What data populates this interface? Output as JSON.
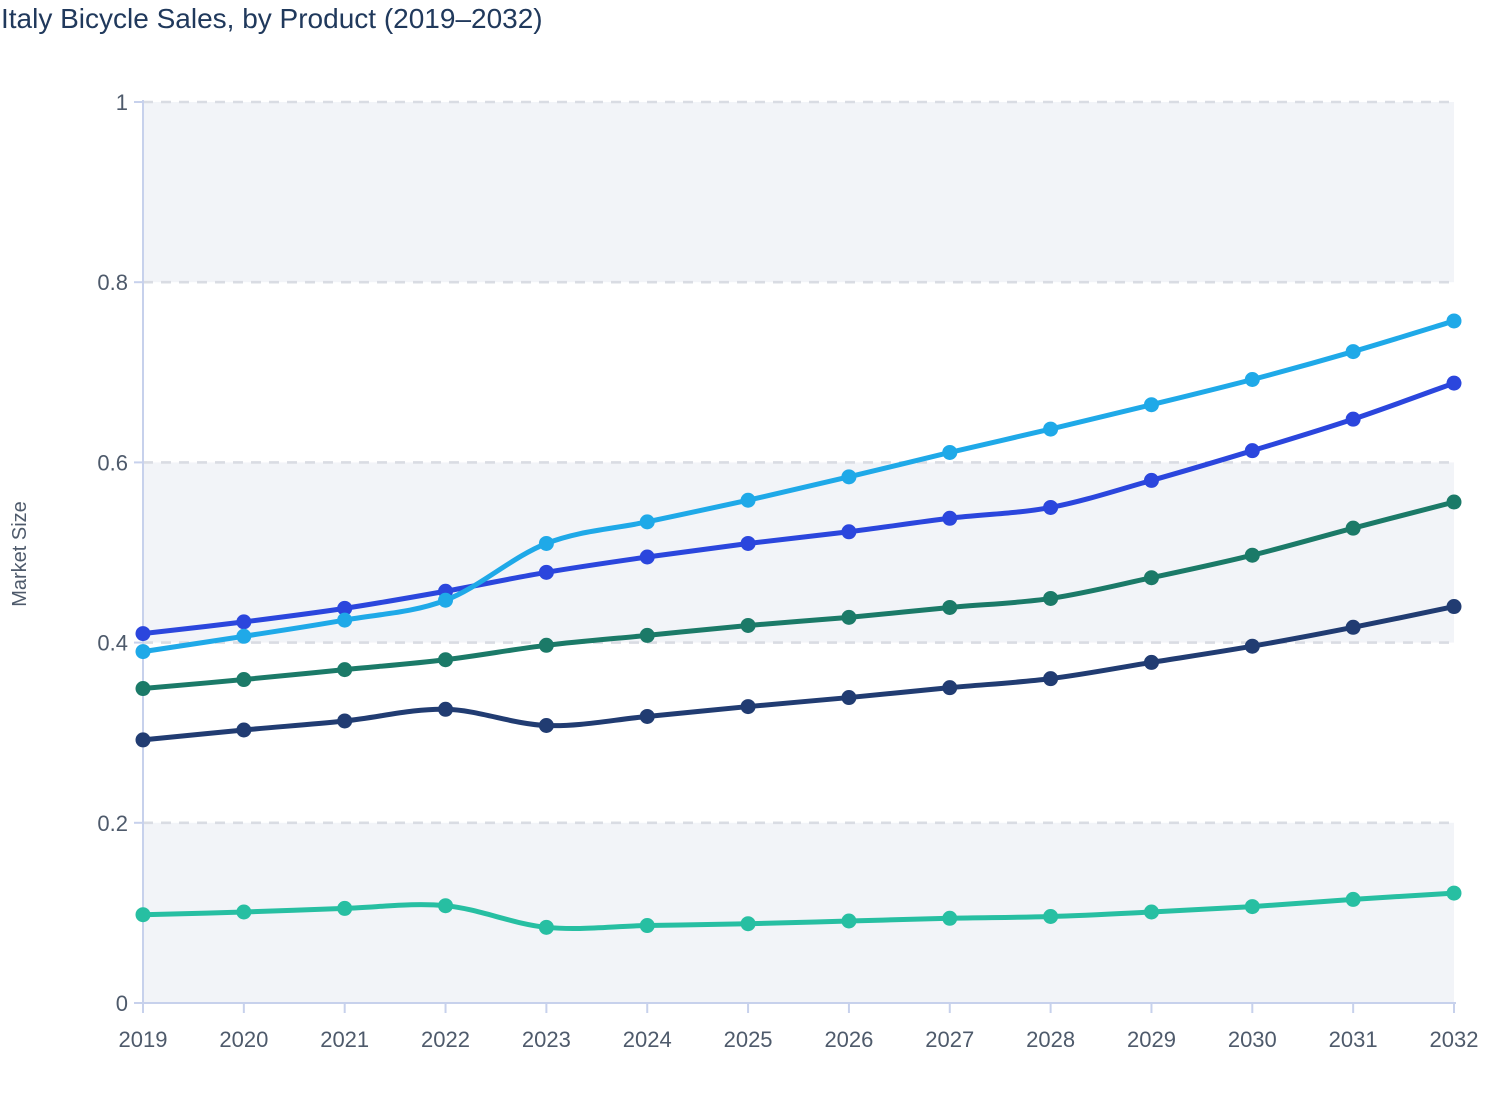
{
  "chart_data": {
    "type": "line",
    "title": "Italy Bicycle Sales, by Product (2019–2032)",
    "ylabel": "Market Size",
    "xlabel": "",
    "x": [
      "2019",
      "2020",
      "2021",
      "2022",
      "2023",
      "2024",
      "2025",
      "2026",
      "2027",
      "2028",
      "2029",
      "2030",
      "2031",
      "2032"
    ],
    "ytick_labels": [
      "0",
      "0.2",
      "0.4",
      "0.6",
      "0.8",
      "1"
    ],
    "ytick_values": [
      0,
      0.2,
      0.4,
      0.6,
      0.8,
      1
    ],
    "ylim": [
      0,
      1
    ],
    "legend": "none",
    "grid": "horizontal dashed gridlines, alternating shaded bands",
    "shaded_bands": [
      [
        0,
        0.2
      ],
      [
        0.4,
        0.6
      ],
      [
        0.8,
        1.0
      ]
    ],
    "smooth": true,
    "series": [
      {
        "name": "light-blue",
        "color": "#1fa9e8",
        "values": [
          0.39,
          0.407,
          0.425,
          0.447,
          0.51,
          0.534,
          0.558,
          0.584,
          0.611,
          0.637,
          0.664,
          0.692,
          0.723,
          0.757
        ]
      },
      {
        "name": "royal-blue",
        "color": "#2b46dd",
        "values": [
          0.41,
          0.423,
          0.438,
          0.457,
          0.478,
          0.495,
          0.51,
          0.523,
          0.538,
          0.55,
          0.58,
          0.613,
          0.648,
          0.688
        ]
      },
      {
        "name": "dark-teal",
        "color": "#1b7a68",
        "values": [
          0.349,
          0.359,
          0.37,
          0.381,
          0.397,
          0.408,
          0.419,
          0.428,
          0.439,
          0.449,
          0.472,
          0.497,
          0.527,
          0.556
        ]
      },
      {
        "name": "navy",
        "color": "#213c72",
        "values": [
          0.292,
          0.303,
          0.313,
          0.326,
          0.308,
          0.318,
          0.329,
          0.339,
          0.35,
          0.36,
          0.378,
          0.396,
          0.417,
          0.44
        ]
      },
      {
        "name": "turquoise",
        "color": "#27bfa2",
        "values": [
          0.098,
          0.101,
          0.105,
          0.108,
          0.084,
          0.086,
          0.088,
          0.091,
          0.094,
          0.096,
          0.101,
          0.107,
          0.115,
          0.122
        ]
      }
    ],
    "colors": {
      "title_text": "#20395c",
      "tick_text": "#4e5a6b",
      "axis_line": "#c7d1ec",
      "gridline": "#d9dce3",
      "band_fill": "#f2f4f8",
      "background": "#ffffff"
    }
  }
}
